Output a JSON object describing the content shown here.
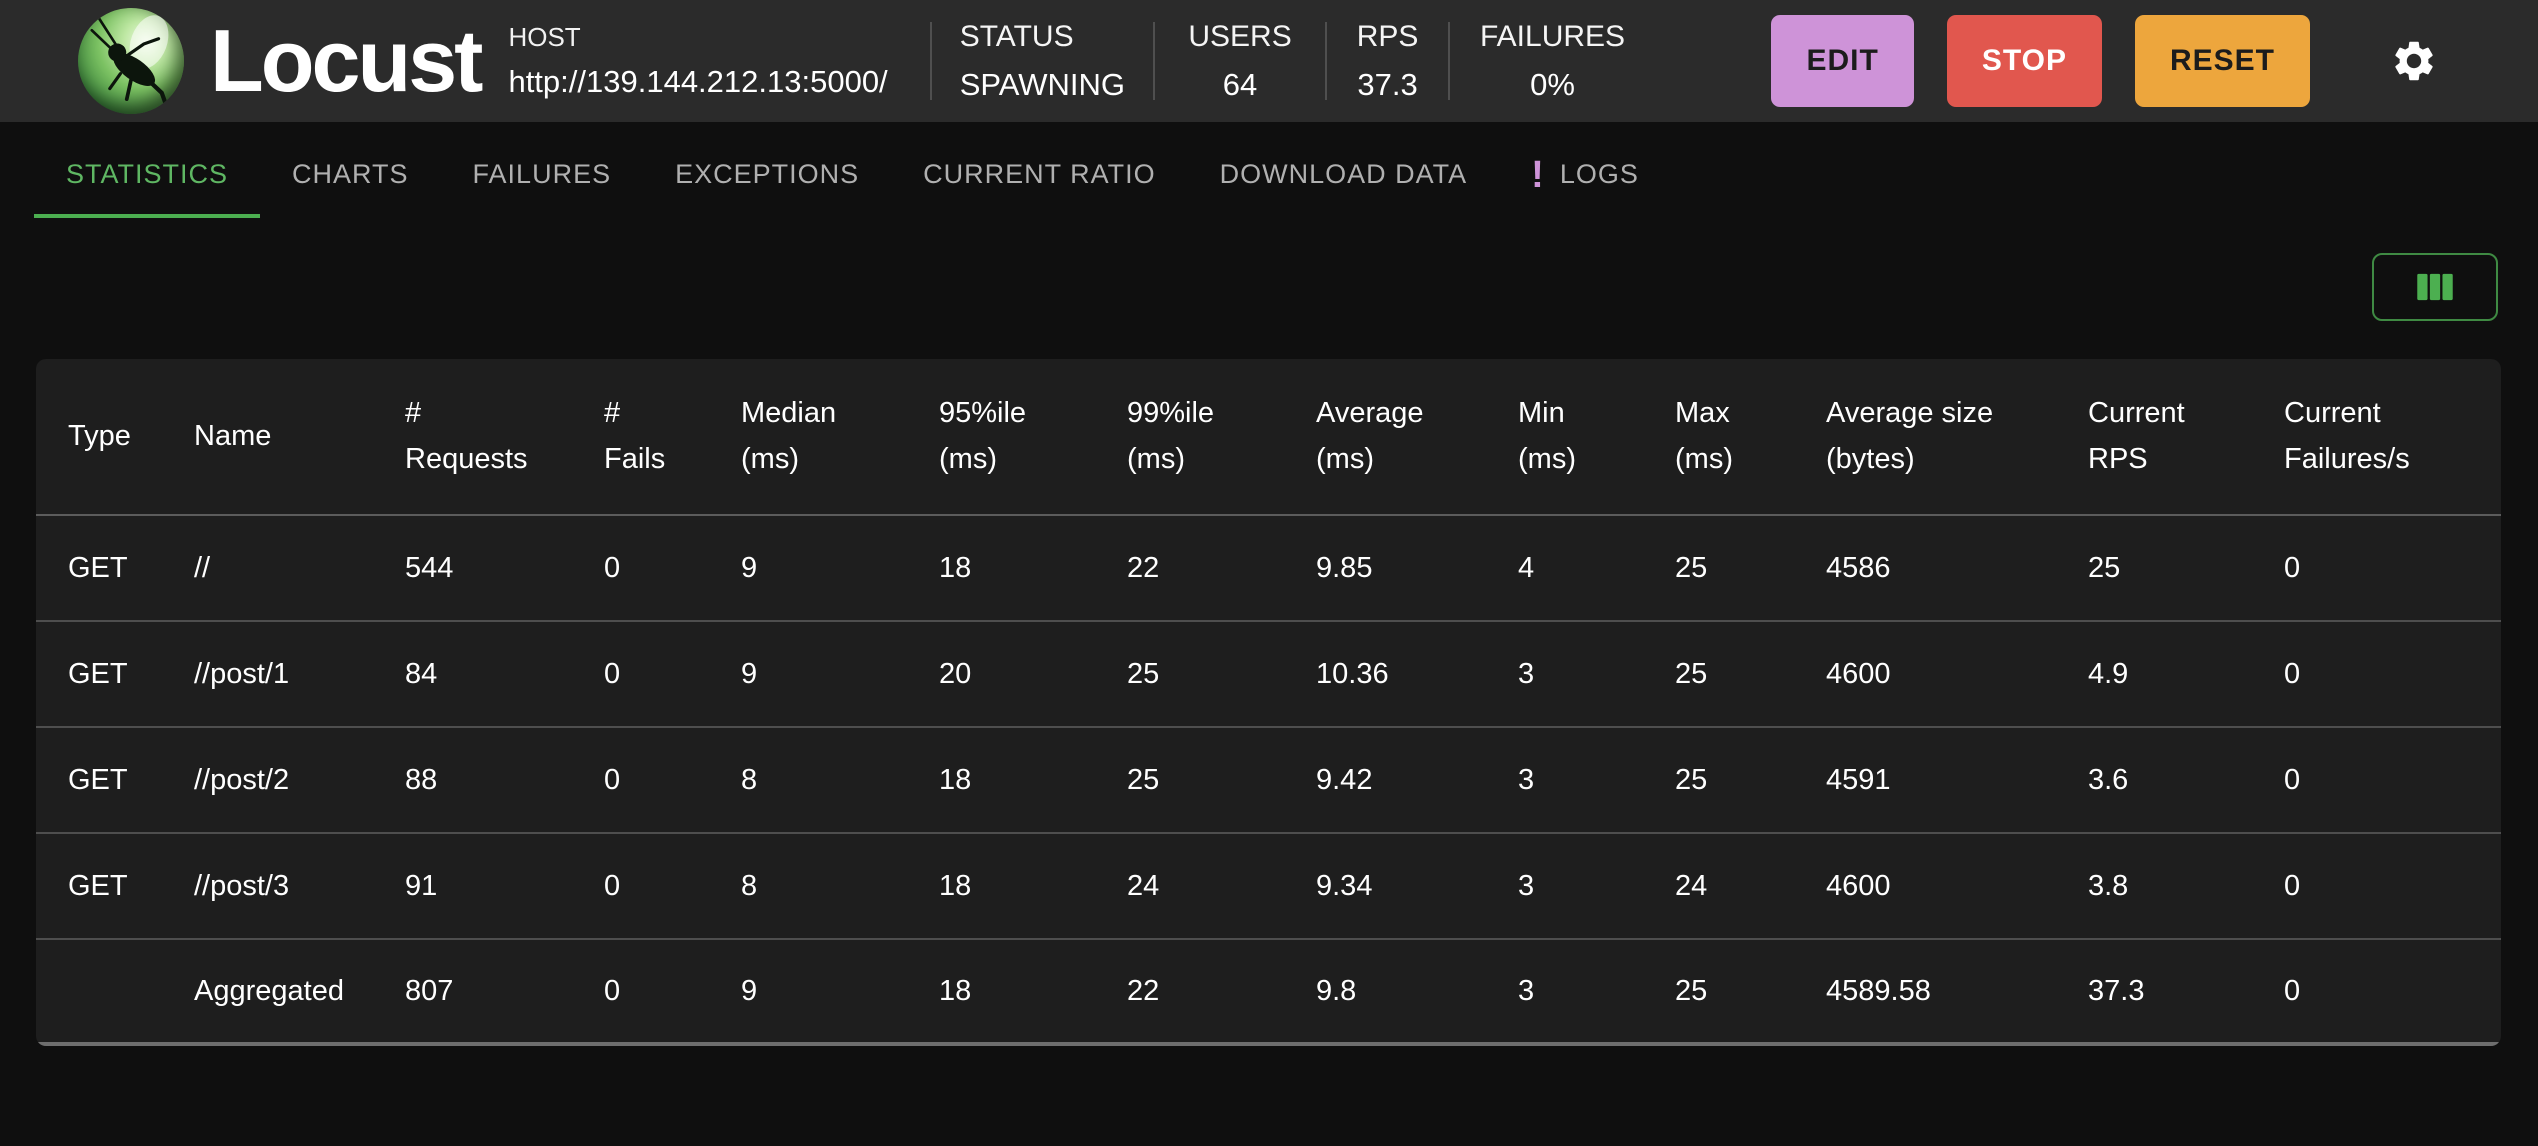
{
  "app": {
    "title": "Locust"
  },
  "header": {
    "host": {
      "label": "HOST",
      "url": "http://139.144.212.13:5000/"
    },
    "stats": [
      {
        "label": "STATUS",
        "value": "SPAWNING"
      },
      {
        "label": "USERS",
        "value": "64"
      },
      {
        "label": "RPS",
        "value": "37.3"
      },
      {
        "label": "FAILURES",
        "value": "0%"
      }
    ],
    "buttons": [
      {
        "label": "EDIT"
      },
      {
        "label": "STOP"
      },
      {
        "label": "RESET"
      }
    ],
    "icons": {
      "gear": "settings-gear",
      "logo": "locust-insect-logo"
    }
  },
  "tabs": [
    {
      "label": "STATISTICS",
      "active": true
    },
    {
      "label": "CHARTS",
      "active": false
    },
    {
      "label": "FAILURES",
      "active": false
    },
    {
      "label": "EXCEPTIONS",
      "active": false
    },
    {
      "label": "CURRENT RATIO",
      "active": false
    },
    {
      "label": "DOWNLOAD DATA",
      "active": false
    },
    {
      "label": "LOGS",
      "active": false,
      "badge": "!"
    }
  ],
  "toolbar": {
    "columns_icon": "view-columns"
  },
  "table": {
    "headers": [
      "Type",
      "Name",
      "#\nRequests",
      "#\nFails",
      "Median\n(ms)",
      "95%ile\n(ms)",
      "99%ile\n(ms)",
      "Average\n(ms)",
      "Min\n(ms)",
      "Max\n(ms)",
      "Average size\n(bytes)",
      "Current\nRPS",
      "Current\nFailures/s"
    ],
    "rows": [
      [
        "GET",
        "//",
        "544",
        "0",
        "9",
        "18",
        "22",
        "9.85",
        "4",
        "25",
        "4586",
        "25",
        "0"
      ],
      [
        "GET",
        "//post/1",
        "84",
        "0",
        "9",
        "20",
        "25",
        "10.36",
        "3",
        "25",
        "4600",
        "4.9",
        "0"
      ],
      [
        "GET",
        "//post/2",
        "88",
        "0",
        "8",
        "18",
        "25",
        "9.42",
        "3",
        "25",
        "4591",
        "3.6",
        "0"
      ],
      [
        "GET",
        "//post/3",
        "91",
        "0",
        "8",
        "18",
        "24",
        "9.34",
        "3",
        "24",
        "4600",
        "3.8",
        "0"
      ],
      [
        "",
        "Aggregated",
        "807",
        "0",
        "9",
        "18",
        "22",
        "9.8",
        "3",
        "25",
        "4589.58",
        "37.3",
        "0"
      ]
    ]
  },
  "colors": {
    "accent_green": "#4caf50",
    "active_tab_text": "#5fb763",
    "edit_button": "#ce93d8",
    "stop_button": "#e1574e",
    "reset_button": "#eda63d",
    "logs_badge": "#ce93d8",
    "header_bg": "#2b2b2b",
    "page_bg": "#0f0f0f",
    "table_bg": "#1e1e1e"
  }
}
